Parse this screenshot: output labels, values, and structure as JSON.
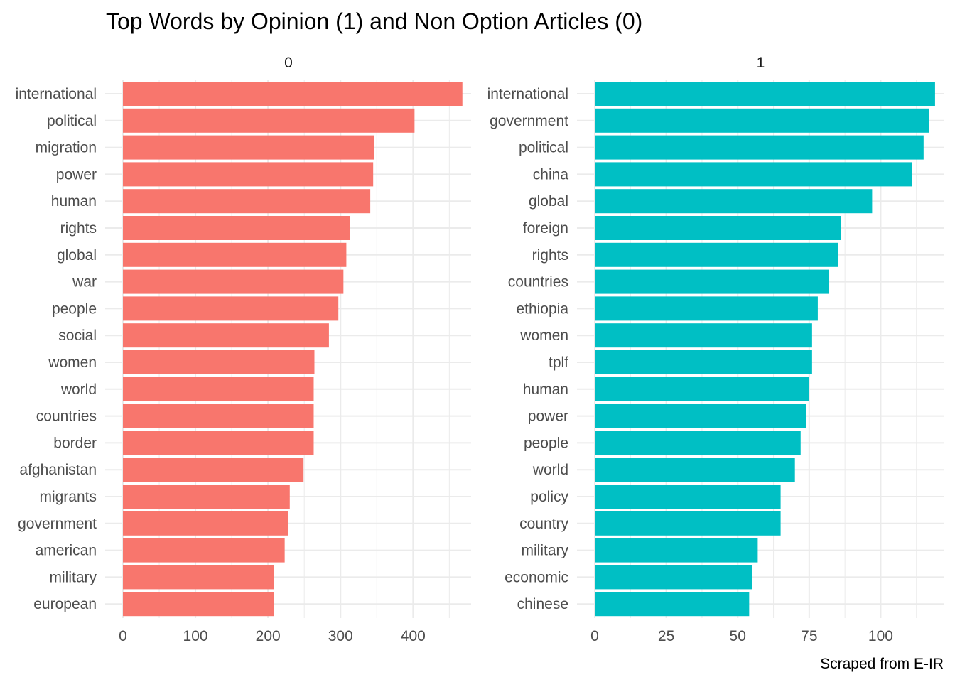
{
  "chart_data": {
    "type": "bar",
    "orientation": "horizontal",
    "title": "Top Words by Opinion (1) and Non Option Articles (0)",
    "caption": "Scraped from E-IR",
    "xlabel": "",
    "ylabel": "",
    "grid": true,
    "facets": [
      {
        "label": "0",
        "color": "#F8766D",
        "xlim": [
          0,
          480
        ],
        "ticks": [
          0,
          100,
          200,
          300,
          400
        ],
        "tick_labels": [
          "0",
          "100",
          "200",
          "300",
          "400"
        ],
        "minor_ticks": [
          50,
          150,
          250,
          350,
          450
        ],
        "categories": [
          "international",
          "political",
          "migration",
          "power",
          "human",
          "rights",
          "global",
          "war",
          "people",
          "social",
          "women",
          "world",
          "countries",
          "border",
          "afghanistan",
          "migrants",
          "government",
          "american",
          "military",
          "european"
        ],
        "values": [
          468,
          402,
          346,
          345,
          341,
          313,
          308,
          304,
          297,
          284,
          264,
          263,
          263,
          263,
          249,
          230,
          228,
          223,
          208,
          208
        ]
      },
      {
        "label": "1",
        "color": "#00BFC4",
        "xlim": [
          0,
          122
        ],
        "ticks": [
          0,
          25,
          50,
          75,
          100
        ],
        "tick_labels": [
          "0",
          "25",
          "50",
          "75",
          "100"
        ],
        "minor_ticks": [
          12.5,
          37.5,
          62.5,
          87.5,
          112.5
        ],
        "categories": [
          "international",
          "government",
          "political",
          "china",
          "global",
          "foreign",
          "rights",
          "countries",
          "ethiopia",
          "women",
          "tplf",
          "human",
          "power",
          "people",
          "world",
          "policy",
          "country",
          "military",
          "economic",
          "chinese"
        ],
        "values": [
          119,
          117,
          115,
          111,
          97,
          86,
          85,
          82,
          78,
          76,
          76,
          75,
          74,
          72,
          70,
          65,
          65,
          57,
          55,
          54
        ]
      }
    ]
  }
}
